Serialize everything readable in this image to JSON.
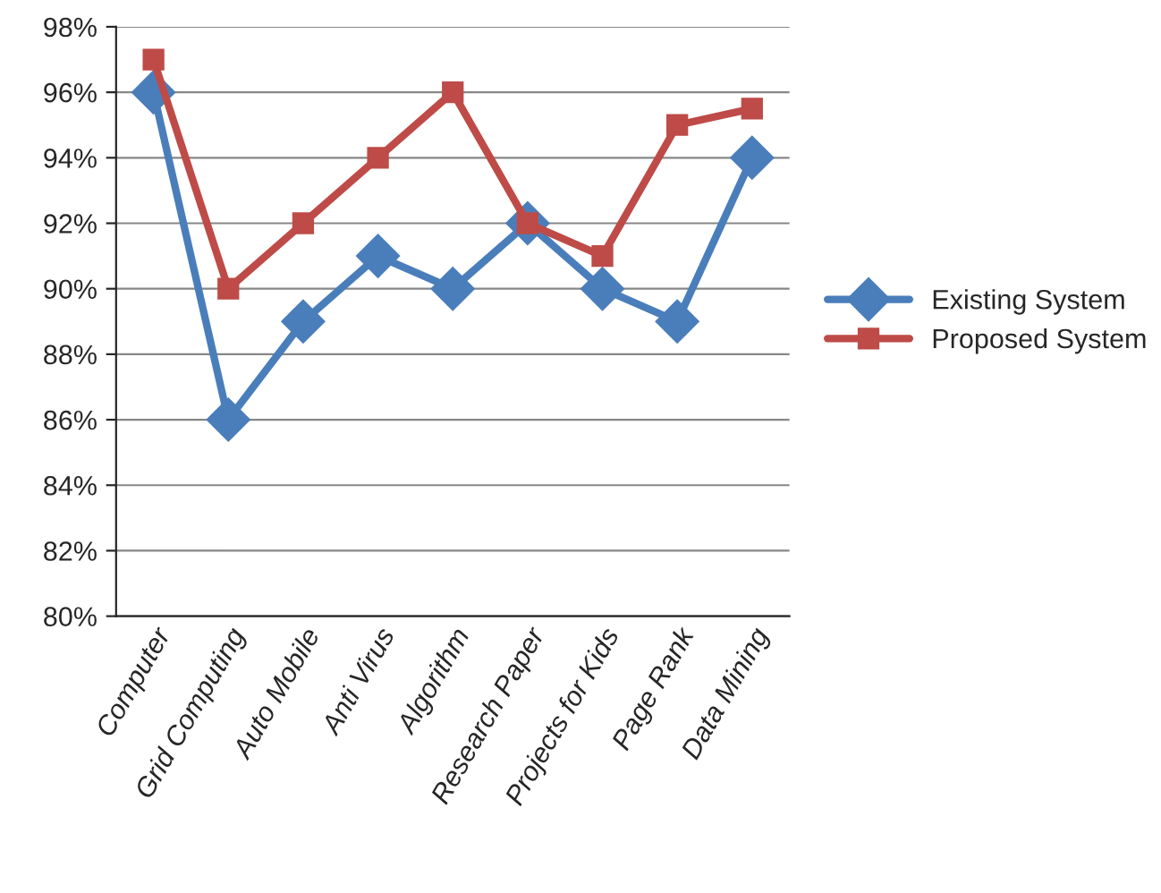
{
  "chart_data": {
    "type": "line",
    "categories": [
      "Computer",
      "Grid Computing",
      "Auto Mobile",
      "Anti Virus",
      "Algorithm",
      "Research Paper",
      "Projects for Kids",
      "Page Rank",
      "Data Mining"
    ],
    "series": [
      {
        "name": "Existing System",
        "color": "#4a7ebb",
        "marker": "diamond",
        "values": [
          96,
          86,
          89,
          91,
          90,
          92,
          90,
          89,
          94
        ]
      },
      {
        "name": "Proposed System",
        "color": "#be4b48",
        "marker": "square",
        "values": [
          97,
          90,
          92,
          94,
          96,
          92,
          91,
          95,
          95.5
        ]
      }
    ],
    "ylim": [
      80,
      98
    ],
    "yticks": [
      {
        "value": 80,
        "label": "80%"
      },
      {
        "value": 82,
        "label": "82%"
      },
      {
        "value": 84,
        "label": "84%"
      },
      {
        "value": 86,
        "label": "86%"
      },
      {
        "value": 88,
        "label": "88%"
      },
      {
        "value": 90,
        "label": "90%"
      },
      {
        "value": 92,
        "label": "92%"
      },
      {
        "value": 94,
        "label": "94%"
      },
      {
        "value": 96,
        "label": "96%"
      },
      {
        "value": 98,
        "label": "98%"
      }
    ],
    "grid": "y",
    "legend": "right",
    "line_style": "solid"
  }
}
